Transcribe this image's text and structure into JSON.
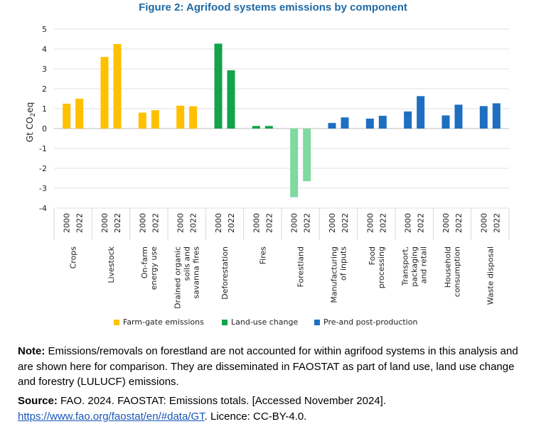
{
  "chart_data": {
    "type": "bar",
    "title": "Figure 2: Agrifood systems emissions by component",
    "ylabel": "Gt CO2eq",
    "ylabel_main": "Gt CO",
    "ylabel_sub": "2",
    "ylabel_tail": "eq",
    "ylim": [
      -4,
      5
    ],
    "yticks": [
      "5",
      "4",
      "3",
      "2",
      "1",
      "0",
      "-1",
      "-2",
      "-3",
      "-4"
    ],
    "years": [
      "2000",
      "2022"
    ],
    "categories": [
      {
        "label": [
          "Crops"
        ],
        "group": "farm",
        "values": [
          1.25,
          1.5
        ]
      },
      {
        "label": [
          "Livestock"
        ],
        "group": "farm",
        "values": [
          3.6,
          4.25
        ]
      },
      {
        "label": [
          "On-farm",
          "energy use"
        ],
        "group": "farm",
        "values": [
          0.8,
          0.92
        ]
      },
      {
        "label": [
          "Drained organic",
          "soils and",
          "savanna fires"
        ],
        "group": "farm",
        "values": [
          1.15,
          1.12
        ]
      },
      {
        "label": [
          "Deforestation"
        ],
        "group": "land",
        "values": [
          4.27,
          2.93
        ]
      },
      {
        "label": [
          "Fires"
        ],
        "group": "land",
        "values": [
          0.13,
          0.13
        ]
      },
      {
        "label": [
          "Forestland"
        ],
        "group": "forest",
        "values": [
          -3.45,
          -2.65
        ]
      },
      {
        "label": [
          "Manufacturing",
          "of inputs"
        ],
        "group": "pre",
        "values": [
          0.28,
          0.56
        ]
      },
      {
        "label": [
          "Food",
          "processing"
        ],
        "group": "pre",
        "values": [
          0.5,
          0.64
        ]
      },
      {
        "label": [
          "Transport,",
          "packaging",
          "and retail"
        ],
        "group": "pre",
        "values": [
          0.86,
          1.63
        ]
      },
      {
        "label": [
          "Household",
          "consumption"
        ],
        "group": "pre",
        "values": [
          0.66,
          1.2
        ]
      },
      {
        "label": [
          "Waste disposal"
        ],
        "group": "pre",
        "values": [
          1.13,
          1.27
        ]
      }
    ],
    "legend": [
      {
        "label": "Farm-gate emissions",
        "color": "#FFC000"
      },
      {
        "label": "Land-use change",
        "color": "#13A34A"
      },
      {
        "label": "Pre-and post-production",
        "color": "#1F6FC0"
      }
    ],
    "colors": {
      "farm": "#FFC000",
      "land": "#13A34A",
      "forest": "#7FD9A0",
      "pre": "#1F6FC0"
    },
    "grid": true,
    "legend_position": "bottom"
  },
  "note": {
    "label": "Note:",
    "text": "Emissions/removals on forestland are not accounted for within agrifood systems in this analysis and are shown here for comparison. They are disseminated in FAOSTAT as part of land use, land use change and forestry (LULUCF) emissions."
  },
  "source": {
    "label": "Source:",
    "text": "FAO. 2024. FAOSTAT: Emissions totals. [Accessed November 2024].",
    "url": "https://www.fao.org/faostat/en/#data/GT",
    "licence": ". Licence: CC-BY-4.0."
  }
}
